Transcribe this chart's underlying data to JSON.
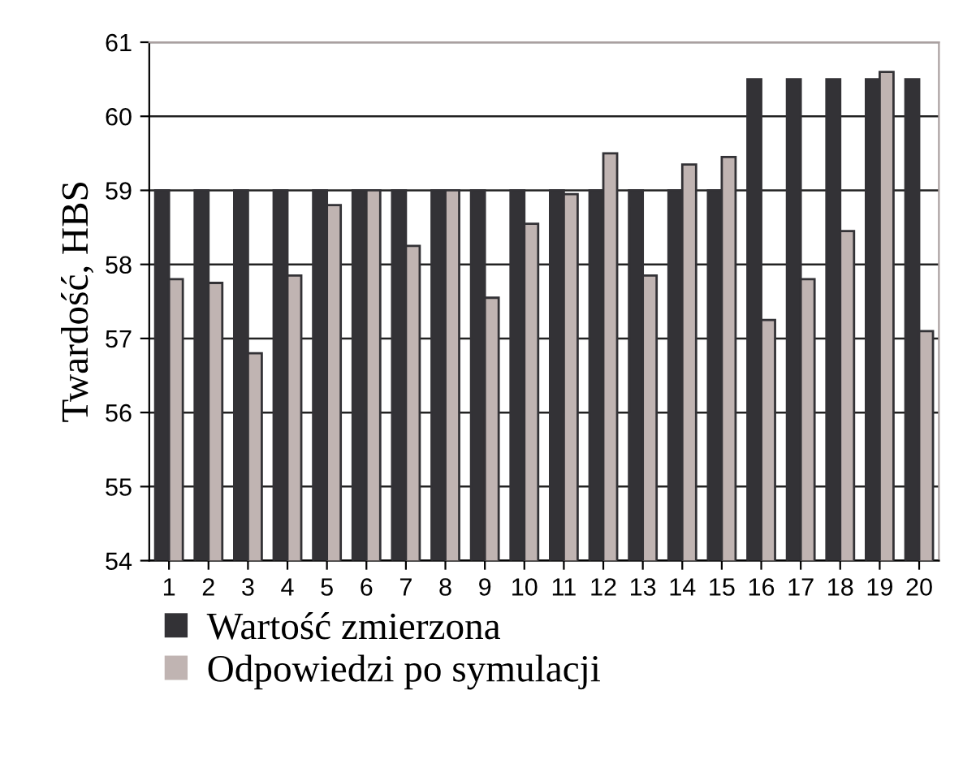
{
  "chart_data": {
    "type": "bar",
    "ylabel": "Twardość, HBS",
    "categories": [
      "1",
      "2",
      "3",
      "4",
      "5",
      "6",
      "7",
      "8",
      "9",
      "10",
      "11",
      "12",
      "13",
      "14",
      "15",
      "16",
      "17",
      "18",
      "19",
      "20"
    ],
    "series": [
      {
        "name": "Wartość zmierzona",
        "color": "#333236",
        "values": [
          59,
          59,
          59,
          59,
          59,
          59,
          59,
          59,
          59,
          59,
          59,
          59,
          59,
          59,
          59,
          60.5,
          60.5,
          60.5,
          60.5,
          60.5
        ]
      },
      {
        "name": "Odpowiedzi po symulacji",
        "color": "#c0b4b2",
        "values": [
          57.8,
          57.75,
          56.8,
          57.85,
          58.8,
          59.0,
          58.25,
          59.0,
          57.55,
          58.55,
          58.95,
          59.5,
          57.85,
          59.35,
          59.45,
          57.25,
          57.8,
          58.45,
          60.6,
          57.1
        ]
      }
    ],
    "ylim": [
      54,
      61
    ],
    "yticks": [
      54,
      55,
      56,
      57,
      58,
      59,
      60,
      61
    ],
    "grid": "y",
    "legend": "bottom"
  }
}
